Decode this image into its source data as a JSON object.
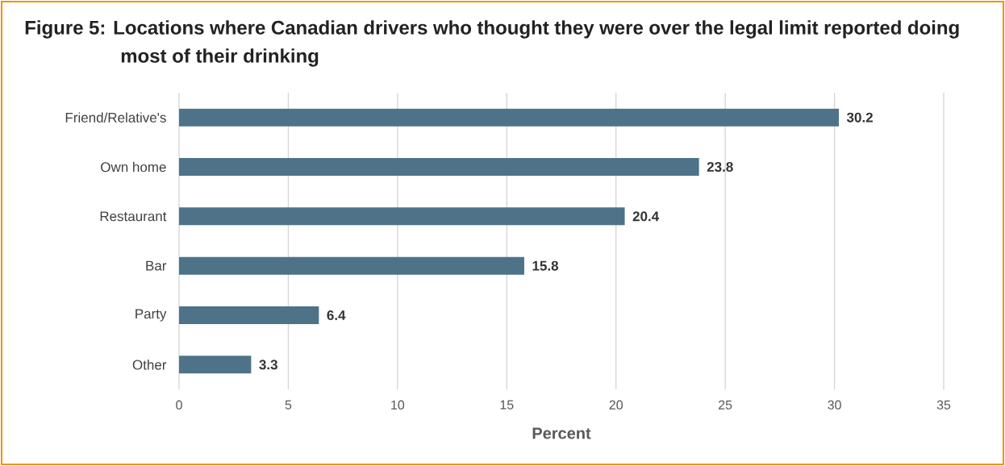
{
  "chart_data": {
    "type": "bar",
    "orientation": "horizontal",
    "title": "Figure 5: Locations where Canadian drivers who thought they were over the legal limit reported doing most of their drinking",
    "xlabel": "Percent",
    "categories": [
      "Friend/Relative's",
      "Own home",
      "Restaurant",
      "Bar",
      "Party",
      "Other"
    ],
    "values": [
      30.2,
      23.8,
      20.4,
      15.8,
      6.4,
      3.3
    ],
    "color": "#4e7389",
    "xlim": [
      0,
      35
    ],
    "xticks": [
      0,
      5,
      10,
      15,
      20,
      25,
      30,
      35
    ],
    "grid": "x",
    "data_labels": true
  }
}
